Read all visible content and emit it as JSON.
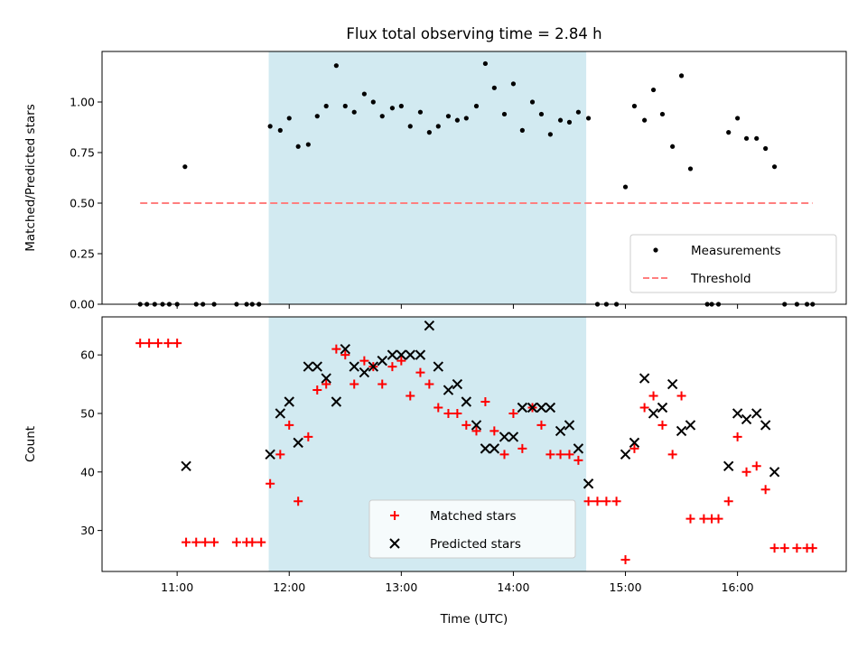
{
  "chart_data": {
    "title": "Flux total observing time = 2.84 h",
    "shaded_region": {
      "start": 11.817,
      "end": 14.65,
      "color": "#add8e6"
    },
    "x_axis": {
      "label": "Time (UTC)",
      "range": [
        10.33,
        16.97
      ],
      "ticks": [
        11,
        12,
        13,
        14,
        15,
        16
      ],
      "tick_labels": [
        "11:00",
        "12:00",
        "13:00",
        "14:00",
        "15:00",
        "16:00"
      ]
    },
    "panels": [
      {
        "type": "scatter",
        "ylabel": "Matched/Predicted stars",
        "ylim": [
          0.0,
          1.25
        ],
        "yticks": [
          0.0,
          0.25,
          0.5,
          0.75,
          1.0
        ],
        "ytick_labels": [
          "0.00",
          "0.25",
          "0.50",
          "0.75",
          "1.00"
        ],
        "legend_position": "lower right",
        "series": [
          {
            "name": "Measurements",
            "marker": "dot",
            "color": "#000000",
            "points": [
              [
                10.67,
                0.0
              ],
              [
                10.73,
                0.0
              ],
              [
                10.8,
                0.0
              ],
              [
                10.87,
                0.0
              ],
              [
                10.93,
                0.0
              ],
              [
                11.0,
                0.0
              ],
              [
                11.07,
                0.68
              ],
              [
                11.17,
                0.0
              ],
              [
                11.23,
                0.0
              ],
              [
                11.33,
                0.0
              ],
              [
                11.53,
                0.0
              ],
              [
                11.62,
                0.0
              ],
              [
                11.67,
                0.0
              ],
              [
                11.73,
                0.0
              ],
              [
                11.83,
                0.88
              ],
              [
                11.92,
                0.86
              ],
              [
                12.0,
                0.92
              ],
              [
                12.08,
                0.78
              ],
              [
                12.17,
                0.79
              ],
              [
                12.25,
                0.93
              ],
              [
                12.33,
                0.98
              ],
              [
                12.42,
                1.18
              ],
              [
                12.5,
                0.98
              ],
              [
                12.58,
                0.95
              ],
              [
                12.67,
                1.04
              ],
              [
                12.75,
                1.0
              ],
              [
                12.83,
                0.93
              ],
              [
                12.92,
                0.97
              ],
              [
                13.0,
                0.98
              ],
              [
                13.08,
                0.88
              ],
              [
                13.17,
                0.95
              ],
              [
                13.25,
                0.85
              ],
              [
                13.33,
                0.88
              ],
              [
                13.42,
                0.93
              ],
              [
                13.5,
                0.91
              ],
              [
                13.58,
                0.92
              ],
              [
                13.67,
                0.98
              ],
              [
                13.75,
                1.19
              ],
              [
                13.83,
                1.07
              ],
              [
                13.92,
                0.94
              ],
              [
                14.0,
                1.09
              ],
              [
                14.08,
                0.86
              ],
              [
                14.17,
                1.0
              ],
              [
                14.25,
                0.94
              ],
              [
                14.33,
                0.84
              ],
              [
                14.42,
                0.91
              ],
              [
                14.5,
                0.9
              ],
              [
                14.58,
                0.95
              ],
              [
                14.67,
                0.92
              ],
              [
                14.75,
                0.0
              ],
              [
                14.83,
                0.0
              ],
              [
                14.92,
                0.0
              ],
              [
                15.0,
                0.58
              ],
              [
                15.08,
                0.98
              ],
              [
                15.17,
                0.91
              ],
              [
                15.25,
                1.06
              ],
              [
                15.33,
                0.94
              ],
              [
                15.42,
                0.78
              ],
              [
                15.5,
                1.13
              ],
              [
                15.58,
                0.67
              ],
              [
                15.73,
                0.0
              ],
              [
                15.77,
                0.0
              ],
              [
                15.83,
                0.0
              ],
              [
                15.92,
                0.85
              ],
              [
                16.0,
                0.92
              ],
              [
                16.08,
                0.82
              ],
              [
                16.17,
                0.82
              ],
              [
                16.25,
                0.77
              ],
              [
                16.33,
                0.68
              ],
              [
                16.42,
                0.0
              ],
              [
                16.53,
                0.0
              ],
              [
                16.62,
                0.0
              ],
              [
                16.67,
                0.0
              ]
            ]
          },
          {
            "name": "Threshold",
            "marker": "dashed-line",
            "color": "#ff7f7f",
            "points": [
              [
                10.67,
                0.5
              ],
              [
                16.67,
                0.5
              ]
            ]
          }
        ]
      },
      {
        "type": "scatter",
        "ylabel": "Count",
        "ylim": [
          23.0,
          66.5
        ],
        "yticks": [
          30,
          40,
          50,
          60
        ],
        "ytick_labels": [
          "30",
          "40",
          "50",
          "60"
        ],
        "legend_position": "lower center",
        "series": [
          {
            "name": "Matched stars",
            "marker": "plus",
            "color": "#ff0000",
            "points": [
              [
                10.67,
                62
              ],
              [
                10.75,
                62
              ],
              [
                10.83,
                62
              ],
              [
                10.92,
                62
              ],
              [
                11.0,
                62
              ],
              [
                11.08,
                28
              ],
              [
                11.17,
                28
              ],
              [
                11.25,
                28
              ],
              [
                11.33,
                28
              ],
              [
                11.53,
                28
              ],
              [
                11.62,
                28
              ],
              [
                11.67,
                28
              ],
              [
                11.75,
                28
              ],
              [
                11.83,
                38
              ],
              [
                11.92,
                43
              ],
              [
                12.0,
                48
              ],
              [
                12.08,
                35
              ],
              [
                12.17,
                46
              ],
              [
                12.25,
                54
              ],
              [
                12.33,
                55
              ],
              [
                12.42,
                61
              ],
              [
                12.5,
                60
              ],
              [
                12.58,
                55
              ],
              [
                12.67,
                59
              ],
              [
                12.75,
                58
              ],
              [
                12.83,
                55
              ],
              [
                12.92,
                58
              ],
              [
                13.0,
                59
              ],
              [
                13.08,
                53
              ],
              [
                13.17,
                57
              ],
              [
                13.25,
                55
              ],
              [
                13.33,
                51
              ],
              [
                13.42,
                50
              ],
              [
                13.5,
                50
              ],
              [
                13.58,
                48
              ],
              [
                13.67,
                47
              ],
              [
                13.75,
                52
              ],
              [
                13.83,
                47
              ],
              [
                13.92,
                43
              ],
              [
                14.0,
                50
              ],
              [
                14.08,
                44
              ],
              [
                14.17,
                51
              ],
              [
                14.25,
                48
              ],
              [
                14.33,
                43
              ],
              [
                14.42,
                43
              ],
              [
                14.5,
                43
              ],
              [
                14.58,
                42
              ],
              [
                14.67,
                35
              ],
              [
                14.75,
                35
              ],
              [
                14.83,
                35
              ],
              [
                14.92,
                35
              ],
              [
                15.0,
                25
              ],
              [
                15.08,
                44
              ],
              [
                15.17,
                51
              ],
              [
                15.25,
                53
              ],
              [
                15.33,
                48
              ],
              [
                15.42,
                43
              ],
              [
                15.5,
                53
              ],
              [
                15.58,
                32
              ],
              [
                15.7,
                32
              ],
              [
                15.77,
                32
              ],
              [
                15.83,
                32
              ],
              [
                15.92,
                35
              ],
              [
                16.0,
                46
              ],
              [
                16.08,
                40
              ],
              [
                16.17,
                41
              ],
              [
                16.25,
                37
              ],
              [
                16.33,
                27
              ],
              [
                16.42,
                27
              ],
              [
                16.53,
                27
              ],
              [
                16.62,
                27
              ],
              [
                16.67,
                27
              ]
            ]
          },
          {
            "name": "Predicted stars",
            "marker": "x",
            "color": "#000000",
            "points": [
              [
                11.08,
                41
              ],
              [
                11.83,
                43
              ],
              [
                11.92,
                50
              ],
              [
                12.0,
                52
              ],
              [
                12.08,
                45
              ],
              [
                12.17,
                58
              ],
              [
                12.25,
                58
              ],
              [
                12.33,
                56
              ],
              [
                12.42,
                52
              ],
              [
                12.5,
                61
              ],
              [
                12.58,
                58
              ],
              [
                12.67,
                57
              ],
              [
                12.75,
                58
              ],
              [
                12.83,
                59
              ],
              [
                12.92,
                60
              ],
              [
                13.0,
                60
              ],
              [
                13.08,
                60
              ],
              [
                13.17,
                60
              ],
              [
                13.25,
                65
              ],
              [
                13.33,
                58
              ],
              [
                13.42,
                54
              ],
              [
                13.5,
                55
              ],
              [
                13.58,
                52
              ],
              [
                13.67,
                48
              ],
              [
                13.75,
                44
              ],
              [
                13.83,
                44
              ],
              [
                13.92,
                46
              ],
              [
                14.0,
                46
              ],
              [
                14.08,
                51
              ],
              [
                14.17,
                51
              ],
              [
                14.25,
                51
              ],
              [
                14.33,
                51
              ],
              [
                14.42,
                47
              ],
              [
                14.5,
                48
              ],
              [
                14.58,
                44
              ],
              [
                14.67,
                38
              ],
              [
                15.0,
                43
              ],
              [
                15.08,
                45
              ],
              [
                15.17,
                56
              ],
              [
                15.25,
                50
              ],
              [
                15.33,
                51
              ],
              [
                15.42,
                55
              ],
              [
                15.5,
                47
              ],
              [
                15.58,
                48
              ],
              [
                15.92,
                41
              ],
              [
                16.0,
                50
              ],
              [
                16.08,
                49
              ],
              [
                16.17,
                50
              ],
              [
                16.25,
                48
              ],
              [
                16.33,
                40
              ]
            ]
          }
        ]
      }
    ]
  }
}
